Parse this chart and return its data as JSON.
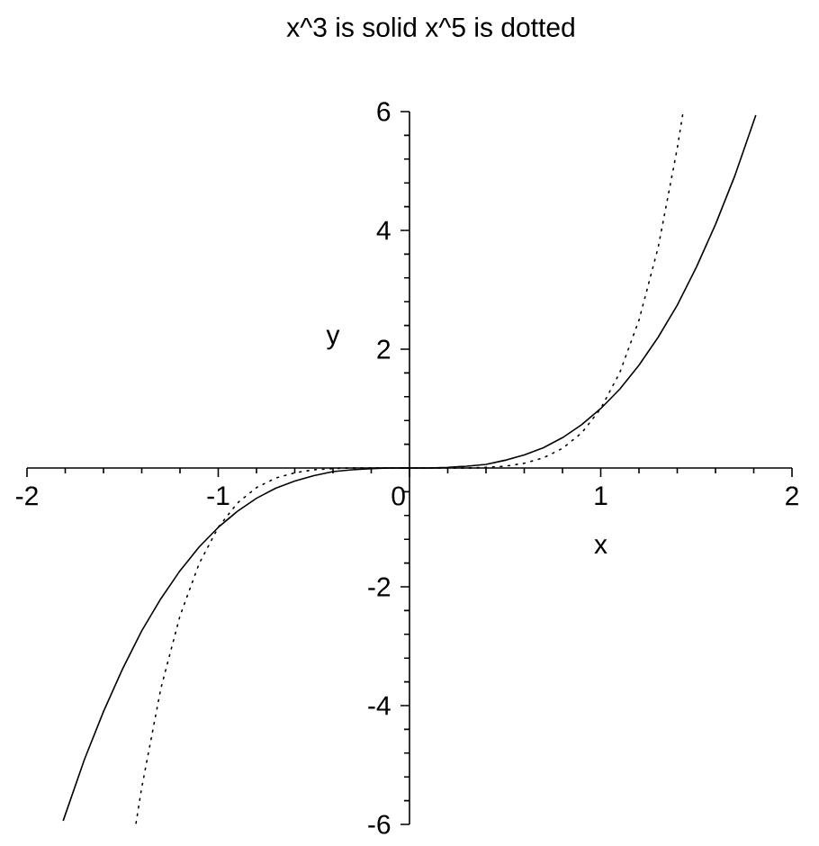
{
  "chart_data": {
    "type": "line",
    "title": "x^3 is solid    x^5 is dotted",
    "xlabel": "x",
    "ylabel": "y",
    "xlim": [
      -2,
      2
    ],
    "ylim": [
      -6,
      6
    ],
    "xticks": [
      -2,
      -1,
      0,
      1,
      2
    ],
    "yticks": [
      -6,
      -4,
      -2,
      {
        "value": 0,
        "label": null
      },
      2,
      4,
      6
    ],
    "series": [
      {
        "color": "#000000",
        "line_style": "solid",
        "x": [
          -1.81,
          -1.7,
          -1.6,
          -1.5,
          -1.4,
          -1.3,
          -1.2,
          -1.1,
          -1.0,
          -0.9,
          -0.8,
          -0.7,
          -0.6,
          -0.5,
          -0.4,
          -0.3,
          -0.2,
          -0.1,
          0,
          0.1,
          0.2,
          0.3,
          0.4,
          0.5,
          0.6,
          0.7,
          0.8,
          0.9,
          1.0,
          1.1,
          1.2,
          1.3,
          1.4,
          1.5,
          1.6,
          1.7,
          1.81
        ],
        "values": [
          -5.93,
          -4.91,
          -4.1,
          -3.38,
          -2.74,
          -2.2,
          -1.73,
          -1.33,
          -1.0,
          -0.73,
          -0.51,
          -0.34,
          -0.22,
          -0.13,
          -0.06,
          -0.03,
          -0.01,
          0,
          0,
          0,
          0.01,
          0.03,
          0.06,
          0.13,
          0.22,
          0.34,
          0.51,
          0.73,
          1.0,
          1.33,
          1.73,
          2.2,
          2.74,
          3.38,
          4.1,
          4.91,
          5.93
        ]
      },
      {
        "color": "#000000",
        "line_style": "dotted",
        "x": [
          -1.43,
          -1.4,
          -1.3,
          -1.2,
          -1.1,
          -1.0,
          -0.9,
          -0.8,
          -0.7,
          -0.6,
          -0.5,
          -0.4,
          -0.3,
          0,
          0.3,
          0.4,
          0.5,
          0.6,
          0.7,
          0.8,
          0.9,
          1.0,
          1.1,
          1.2,
          1.3,
          1.4,
          1.43
        ],
        "values": [
          -5.98,
          -5.38,
          -3.71,
          -2.49,
          -1.61,
          -1.0,
          -0.59,
          -0.33,
          -0.17,
          -0.08,
          -0.03,
          -0.01,
          0,
          0,
          0,
          0.01,
          0.03,
          0.08,
          0.17,
          0.33,
          0.59,
          1.0,
          1.61,
          2.49,
          3.71,
          5.38,
          5.98
        ]
      }
    ]
  }
}
